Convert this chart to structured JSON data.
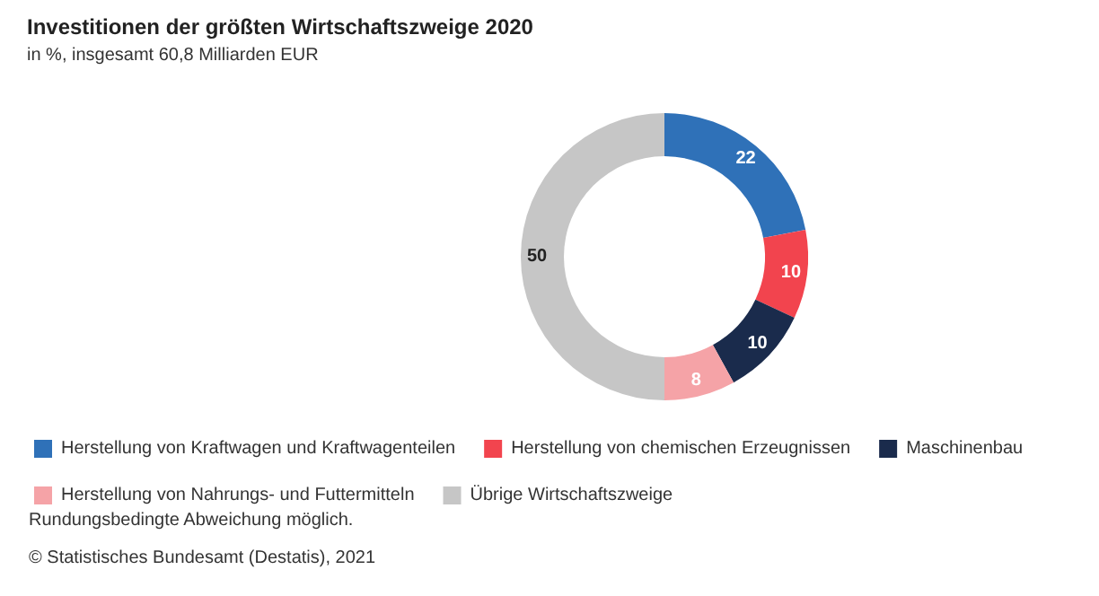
{
  "chart_data": {
    "type": "donut",
    "title": "Investitionen der größten Wirtschaftszweige 2020",
    "subtitle": "in %, insgesamt 60,8 Milliarden EUR",
    "categories": [
      "Herstellung von Kraftwagen und Kraftwagenteilen",
      "Herstellung von chemischen Erzeugnissen",
      "Maschinenbau",
      "Herstellung von Nahrungs- und Futtermitteln",
      "Übrige Wirtschaftszweige"
    ],
    "values": [
      22,
      10,
      10,
      8,
      50
    ],
    "colors": [
      "#2f71b8",
      "#f2444e",
      "#1a2b4c",
      "#f5a3a7",
      "#c6c6c6"
    ],
    "data_labels": true,
    "legend": "bottom left",
    "annotations": [
      "Rundungsbedingte Abweichung möglich.",
      "© Statistisches Bundesamt (Destatis), 2021"
    ]
  }
}
